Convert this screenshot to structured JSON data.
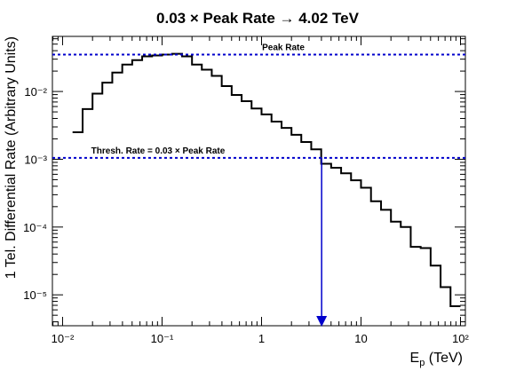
{
  "chart_data": {
    "type": "line",
    "title": "0.03 × Peak Rate → 4.02 TeV",
    "xlabel": "Eₚ (TeV)",
    "ylabel": "1 Tel. Differential Rate (Arbitrary Units)",
    "xscale": "log",
    "yscale": "log",
    "xlim": [
      0.0079,
      112
    ],
    "ylim": [
      3.5e-06,
      0.065
    ],
    "grid": false,
    "x_ticks": [
      {
        "value": 0.01,
        "label": "10⁻²"
      },
      {
        "value": 0.1,
        "label": "10⁻¹"
      },
      {
        "value": 1,
        "label": "1"
      },
      {
        "value": 10,
        "label": "10"
      },
      {
        "value": 100,
        "label": "10²"
      }
    ],
    "y_ticks": [
      {
        "value": 1e-05,
        "label": "10⁻⁵"
      },
      {
        "value": 0.0001,
        "label": "10⁻⁴"
      },
      {
        "value": 0.001,
        "label": "10⁻³"
      },
      {
        "value": 0.01,
        "label": "10⁻²"
      }
    ],
    "series": [
      {
        "style": "histogram",
        "color": "#000000",
        "bin_edges": [
          0.0126,
          0.0159,
          0.02,
          0.0251,
          0.0316,
          0.0398,
          0.0501,
          0.0631,
          0.0794,
          0.1,
          0.126,
          0.159,
          0.2,
          0.251,
          0.316,
          0.398,
          0.501,
          0.631,
          0.794,
          1.0,
          1.26,
          1.59,
          2.0,
          2.51,
          3.16,
          3.98,
          5.01,
          6.31,
          7.94,
          10.0,
          12.6,
          15.9,
          20.0,
          25.1,
          31.6,
          39.8,
          50.1,
          63.1,
          79.4,
          100
        ],
        "values": [
          0.0025,
          0.0055,
          0.0093,
          0.0135,
          0.019,
          0.025,
          0.029,
          0.033,
          0.034,
          0.035,
          0.036,
          0.033,
          0.025,
          0.021,
          0.017,
          0.012,
          0.0089,
          0.0072,
          0.0056,
          0.0046,
          0.0036,
          0.0029,
          0.0023,
          0.0018,
          0.0014,
          0.00086,
          0.00075,
          0.00062,
          0.00049,
          0.00038,
          0.00024,
          0.00018,
          0.00012,
          0.0001,
          5.1e-05,
          4.9e-05,
          2.7e-05,
          1.3e-05,
          6.8e-06
        ]
      }
    ],
    "reference_lines": [
      {
        "type": "hline",
        "y": 0.035,
        "label": "Peak Rate",
        "color": "#0000cc",
        "style": "dotted"
      },
      {
        "type": "hline",
        "y": 0.00105,
        "label": "Thresh. Rate = 0.03 × Peak Rate",
        "color": "#0000cc",
        "style": "dotted"
      },
      {
        "type": "arrow",
        "x": 4.02,
        "color": "#0000cc"
      }
    ]
  }
}
